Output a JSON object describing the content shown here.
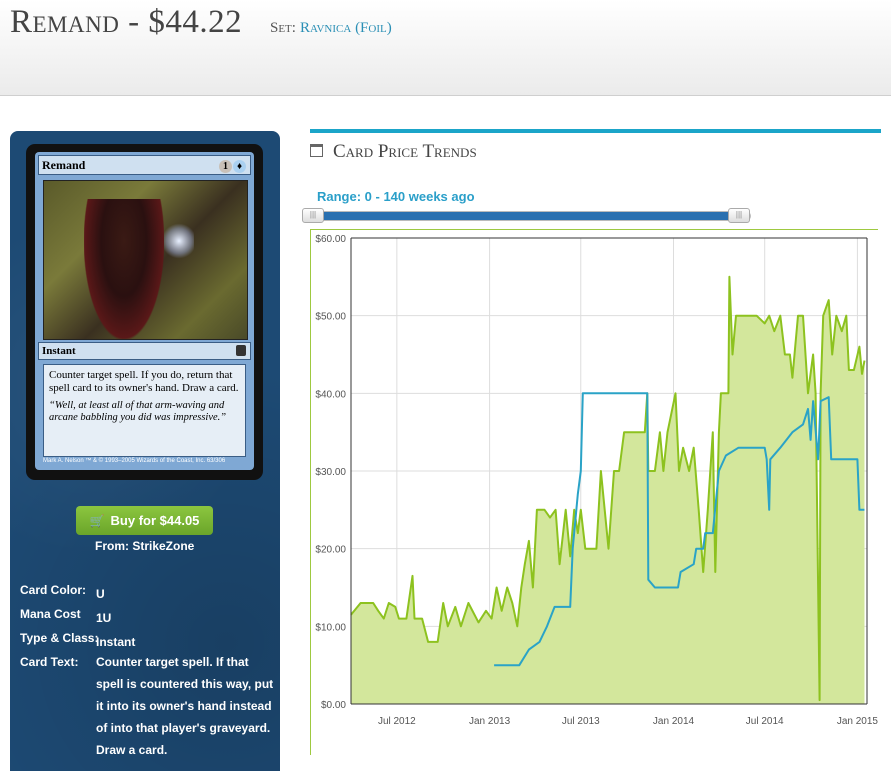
{
  "header": {
    "card_name": "Remand",
    "price": "$44.22",
    "title_separator": " - ",
    "set_label": "Set:",
    "set_name": "Ravnica (Foil)"
  },
  "card_image": {
    "name": "Remand",
    "cost_generic": "1",
    "cost_blue": "U",
    "type_line": "Instant",
    "rules_text": "Counter target spell. If you do, return that spell card to its owner's hand. Draw a card.",
    "flavor_text": "“Well, at least all of that arm-waving and arcane babbling you did was impressive.”",
    "credit": "Mark A. Nelson  ™ & © 1993–2005 Wizards of the Coast, Inc. 63/306"
  },
  "buy": {
    "label": "Buy for $44.05",
    "from": "From: StrikeZone",
    "cart_icon": "shopping-cart-icon"
  },
  "details": [
    {
      "key": "Card Color:",
      "value": "U"
    },
    {
      "key": "Mana Cost",
      "value": "1U"
    },
    {
      "key": "Type & Class:",
      "value": "Instant"
    },
    {
      "key": "Card Text:",
      "value": "Counter target spell. If that spell is countered this way, put it into its owner's hand instead of into that player's graveyard. Draw a card."
    }
  ],
  "trends": {
    "title": "Card Price Trends",
    "icon": "calendar-icon",
    "range_label": "Range: 0 - 140 weeks ago",
    "slider_handle_glyph": "|||"
  },
  "colors": {
    "accent": "#1ba5c9",
    "green_series": "#8dc21f",
    "green_fill": "#d3e79c",
    "blue_series": "#2aa3c7",
    "panel_bg": "#1d4a74",
    "buy_button": "#7cb83a"
  },
  "chart_data": {
    "type": "line",
    "x_tick_labels": [
      "Jul 2012",
      "Jan 2013",
      "Jul 2013",
      "Jan 2014",
      "Jul 2014",
      "Jan 2015"
    ],
    "y_tick_labels": [
      "$0.00",
      "$10.00",
      "$20.00",
      "$30.00",
      "$40.00",
      "$50.00",
      "$60.00"
    ],
    "ylim": [
      0,
      60
    ],
    "grid": true,
    "series": [
      {
        "color": "#8dc21f",
        "area": true,
        "points": [
          [
            "2012-04-01",
            11.5
          ],
          [
            "2012-04-20",
            13
          ],
          [
            "2012-05-15",
            13
          ],
          [
            "2012-05-25",
            12
          ],
          [
            "2012-06-05",
            11
          ],
          [
            "2012-06-15",
            13
          ],
          [
            "2012-06-28",
            12.5
          ],
          [
            "2012-07-05",
            11
          ],
          [
            "2012-07-20",
            11
          ],
          [
            "2012-08-01",
            16.5
          ],
          [
            "2012-08-05",
            11
          ],
          [
            "2012-08-20",
            11
          ],
          [
            "2012-09-01",
            8
          ],
          [
            "2012-09-20",
            8
          ],
          [
            "2012-10-01",
            13
          ],
          [
            "2012-10-10",
            10
          ],
          [
            "2012-10-25",
            12.5
          ],
          [
            "2012-11-05",
            10
          ],
          [
            "2012-11-20",
            13
          ],
          [
            "2012-12-10",
            10.5
          ],
          [
            "2012-12-25",
            12
          ],
          [
            "2013-01-05",
            11
          ],
          [
            "2013-01-15",
            15
          ],
          [
            "2013-01-25",
            12
          ],
          [
            "2013-02-05",
            15
          ],
          [
            "2013-02-15",
            13
          ],
          [
            "2013-02-25",
            10
          ],
          [
            "2013-03-05",
            15
          ],
          [
            "2013-03-12",
            18
          ],
          [
            "2013-03-20",
            21
          ],
          [
            "2013-03-28",
            15
          ],
          [
            "2013-04-05",
            25
          ],
          [
            "2013-04-20",
            25
          ],
          [
            "2013-05-01",
            24
          ],
          [
            "2013-05-12",
            25
          ],
          [
            "2013-05-20",
            18
          ],
          [
            "2013-06-01",
            25
          ],
          [
            "2013-06-10",
            19
          ],
          [
            "2013-06-18",
            25
          ],
          [
            "2013-06-25",
            22
          ],
          [
            "2013-07-01",
            25
          ],
          [
            "2013-07-10",
            20
          ],
          [
            "2013-07-20",
            20
          ],
          [
            "2013-08-01",
            20
          ],
          [
            "2013-08-10",
            30
          ],
          [
            "2013-08-25",
            20
          ],
          [
            "2013-09-05",
            30
          ],
          [
            "2013-09-15",
            30
          ],
          [
            "2013-09-25",
            35
          ],
          [
            "2013-10-10",
            35
          ],
          [
            "2013-10-25",
            35
          ],
          [
            "2013-11-05",
            35
          ],
          [
            "2013-11-10",
            40
          ],
          [
            "2013-11-12",
            30
          ],
          [
            "2013-11-25",
            30
          ],
          [
            "2013-12-05",
            35
          ],
          [
            "2013-12-12",
            30
          ],
          [
            "2013-12-20",
            35
          ],
          [
            "2014-01-05",
            40
          ],
          [
            "2014-01-12",
            30
          ],
          [
            "2014-01-20",
            33
          ],
          [
            "2014-02-01",
            30
          ],
          [
            "2014-02-10",
            33
          ],
          [
            "2014-02-20",
            25
          ],
          [
            "2014-03-01",
            17
          ],
          [
            "2014-03-10",
            25
          ],
          [
            "2014-03-15",
            30
          ],
          [
            "2014-03-20",
            35
          ],
          [
            "2014-03-25",
            17
          ],
          [
            "2014-04-01",
            35
          ],
          [
            "2014-04-05",
            40
          ],
          [
            "2014-04-20",
            40
          ],
          [
            "2014-04-22",
            55
          ],
          [
            "2014-04-28",
            45
          ],
          [
            "2014-05-05",
            50
          ],
          [
            "2014-05-20",
            50
          ],
          [
            "2014-06-01",
            50
          ],
          [
            "2014-06-15",
            50
          ],
          [
            "2014-07-01",
            49
          ],
          [
            "2014-07-10",
            50
          ],
          [
            "2014-07-20",
            48
          ],
          [
            "2014-08-01",
            50
          ],
          [
            "2014-08-10",
            45
          ],
          [
            "2014-08-20",
            45
          ],
          [
            "2014-08-25",
            42
          ],
          [
            "2014-09-05",
            50
          ],
          [
            "2014-09-15",
            50
          ],
          [
            "2014-09-25",
            40
          ],
          [
            "2014-10-05",
            45
          ],
          [
            "2014-10-10",
            40
          ],
          [
            "2014-10-18",
            0.5
          ],
          [
            "2014-10-20",
            40
          ],
          [
            "2014-10-25",
            50
          ],
          [
            "2014-11-05",
            52
          ],
          [
            "2014-11-12",
            45
          ],
          [
            "2014-11-20",
            50
          ],
          [
            "2014-12-01",
            48
          ],
          [
            "2014-12-10",
            50
          ],
          [
            "2014-12-15",
            43
          ],
          [
            "2014-12-25",
            43
          ],
          [
            "2015-01-05",
            46
          ],
          [
            "2015-01-10",
            42.5
          ],
          [
            "2015-01-15",
            44.22
          ]
        ]
      },
      {
        "color": "#2aa3c7",
        "area": false,
        "points": [
          [
            "2013-01-10",
            5
          ],
          [
            "2013-03-01",
            5
          ],
          [
            "2013-03-20",
            7
          ],
          [
            "2013-04-10",
            8
          ],
          [
            "2013-04-25",
            10
          ],
          [
            "2013-05-10",
            12.5
          ],
          [
            "2013-06-10",
            12.5
          ],
          [
            "2013-06-15",
            20
          ],
          [
            "2013-06-25",
            27
          ],
          [
            "2013-07-01",
            30
          ],
          [
            "2013-07-05",
            40
          ],
          [
            "2013-11-10",
            40
          ],
          [
            "2013-11-12",
            16
          ],
          [
            "2013-11-25",
            15
          ],
          [
            "2014-01-10",
            15
          ],
          [
            "2014-01-15",
            17
          ],
          [
            "2014-02-10",
            18
          ],
          [
            "2014-02-15",
            20
          ],
          [
            "2014-03-01",
            20
          ],
          [
            "2014-03-05",
            22
          ],
          [
            "2014-03-20",
            22
          ],
          [
            "2014-04-01",
            30
          ],
          [
            "2014-04-15",
            32
          ],
          [
            "2014-05-10",
            33
          ],
          [
            "2014-07-01",
            33
          ],
          [
            "2014-07-05",
            31.5
          ],
          [
            "2014-07-10",
            25
          ],
          [
            "2014-07-12",
            31.5
          ],
          [
            "2014-08-01",
            33
          ],
          [
            "2014-08-25",
            35
          ],
          [
            "2014-09-15",
            36
          ],
          [
            "2014-09-25",
            38
          ],
          [
            "2014-09-30",
            34
          ],
          [
            "2014-10-05",
            39
          ],
          [
            "2014-10-15",
            31.5
          ],
          [
            "2014-10-20",
            39
          ],
          [
            "2014-11-05",
            39.5
          ],
          [
            "2014-11-10",
            31.5
          ],
          [
            "2015-01-01",
            31.5
          ],
          [
            "2015-01-05",
            25
          ],
          [
            "2015-01-15",
            25
          ]
        ]
      }
    ]
  }
}
